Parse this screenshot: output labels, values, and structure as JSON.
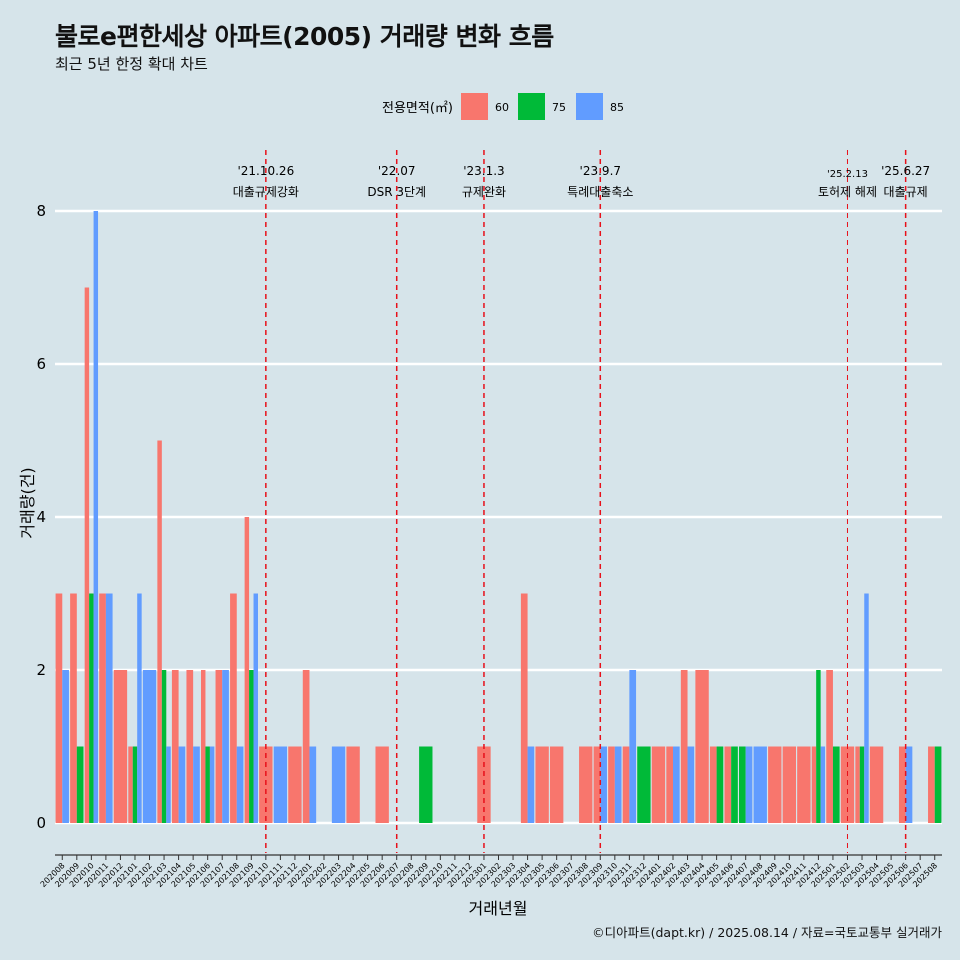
{
  "title": "불로e편한세상 아파트(2005) 거래량 변화 흐름",
  "subtitle": "최근 5년 한정 확대 차트",
  "caption": "©디아파트(dapt.kr) / 2025.08.14 / 자료=국토교통부 실거래가",
  "chart_data": {
    "type": "bar",
    "xlabel": "거래년월",
    "ylabel": "거래량(건)",
    "ylim": [
      0,
      8
    ],
    "yticks": [
      0,
      2,
      4,
      6,
      8
    ],
    "grid": true,
    "legend_title": "전용면적(㎡)",
    "legend_position": "top",
    "colors": {
      "60": "#f8766d",
      "75": "#00ba38",
      "85": "#619cff"
    },
    "categories": [
      "202008",
      "202009",
      "202010",
      "202011",
      "202012",
      "202101",
      "202102",
      "202103",
      "202104",
      "202105",
      "202106",
      "202107",
      "202108",
      "202109",
      "202110",
      "202111",
      "202112",
      "202201",
      "202202",
      "202203",
      "202204",
      "202205",
      "202206",
      "202207",
      "202208",
      "202209",
      "202210",
      "202211",
      "202212",
      "202301",
      "202302",
      "202303",
      "202304",
      "202305",
      "202306",
      "202307",
      "202308",
      "202309",
      "202310",
      "202311",
      "202312",
      "202401",
      "202402",
      "202403",
      "202404",
      "202405",
      "202406",
      "202407",
      "202408",
      "202409",
      "202410",
      "202411",
      "202412",
      "202501",
      "202502",
      "202503",
      "202504",
      "202505",
      "202506",
      "202507",
      "202508"
    ],
    "series": [
      {
        "name": "60",
        "values": [
          3,
          3,
          7,
          3,
          2,
          1,
          0,
          5,
          2,
          2,
          2,
          2,
          3,
          4,
          1,
          0,
          1,
          2,
          0,
          0,
          1,
          0,
          1,
          0,
          0,
          0,
          0,
          0,
          0,
          1,
          0,
          0,
          3,
          1,
          1,
          0,
          1,
          1,
          1,
          1,
          0,
          1,
          1,
          2,
          2,
          1,
          1,
          0,
          0,
          1,
          1,
          1,
          1,
          2,
          1,
          1,
          1,
          0,
          1,
          0,
          1
        ]
      },
      {
        "name": "75",
        "values": [
          0,
          1,
          3,
          0,
          0,
          1,
          0,
          2,
          0,
          0,
          1,
          0,
          0,
          2,
          0,
          0,
          0,
          0,
          0,
          0,
          0,
          0,
          0,
          0,
          0,
          1,
          0,
          0,
          0,
          0,
          0,
          0,
          0,
          0,
          0,
          0,
          0,
          0,
          0,
          0,
          1,
          0,
          0,
          0,
          0,
          1,
          1,
          1,
          0,
          0,
          0,
          0,
          2,
          1,
          0,
          1,
          0,
          0,
          0,
          0,
          1
        ]
      },
      {
        "name": "85",
        "values": [
          2,
          0,
          8,
          3,
          0,
          3,
          2,
          1,
          1,
          1,
          1,
          2,
          1,
          3,
          0,
          1,
          0,
          1,
          0,
          1,
          0,
          0,
          0,
          0,
          0,
          0,
          0,
          0,
          0,
          0,
          0,
          0,
          1,
          0,
          0,
          0,
          0,
          1,
          1,
          2,
          0,
          0,
          1,
          1,
          0,
          0,
          0,
          1,
          1,
          0,
          0,
          0,
          1,
          0,
          0,
          3,
          0,
          0,
          1,
          0,
          0
        ]
      }
    ],
    "annotations": [
      {
        "date": "'21.10.26",
        "label": "대출규제강화",
        "category": "202110"
      },
      {
        "date": "'22.07",
        "label": "DSR 3단계",
        "category": "202207"
      },
      {
        "date": "'23.1.3",
        "label": "규제완화",
        "category": "202301"
      },
      {
        "date": "'23.9.7",
        "label": "특례대출축소",
        "category": "202309"
      },
      {
        "date": "'25.2.13",
        "label": "토허제 해제",
        "category": "202502"
      },
      {
        "date": "'25.6.27",
        "label": "대출규제",
        "category": "202506"
      }
    ]
  }
}
